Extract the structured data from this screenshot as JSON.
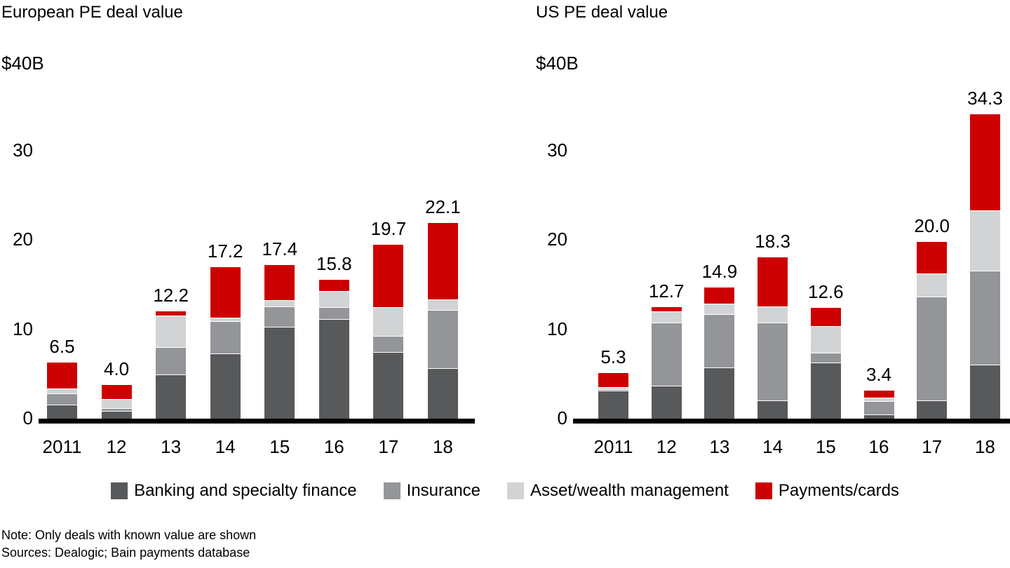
{
  "page": {
    "background": "#ffffff",
    "text_color": "#000000"
  },
  "palette": {
    "banking": "#58595B",
    "insurance": "#939598",
    "asset_wealth": "#D1D3D4",
    "payments": "#CC0000",
    "axis": "#000000"
  },
  "chart_data": [
    {
      "type": "bar",
      "stacked": true,
      "title": "European PE deal value",
      "unit_label": "$40B",
      "categories": [
        "2011",
        "12",
        "13",
        "14",
        "15",
        "16",
        "17",
        "18"
      ],
      "series": [
        {
          "name": "Banking and specialty finance",
          "color": "#58595B",
          "values": [
            1.8,
            1.1,
            5.2,
            7.5,
            10.5,
            11.4,
            7.7,
            5.9
          ]
        },
        {
          "name": "Insurance",
          "color": "#939598",
          "values": [
            1.3,
            0.3,
            3.0,
            3.6,
            2.3,
            1.3,
            1.8,
            6.5
          ]
        },
        {
          "name": "Asset/wealth management",
          "color": "#D1D3D4",
          "values": [
            0.5,
            1.0,
            3.6,
            0.4,
            0.7,
            1.8,
            3.2,
            1.2
          ]
        },
        {
          "name": "Payments/cards",
          "color": "#CC0000",
          "values": [
            2.9,
            1.6,
            0.4,
            5.7,
            3.9,
            1.3,
            7.0,
            8.5
          ]
        }
      ],
      "bar_total_labels": [
        "6.5",
        "4.0",
        "12.2",
        "17.2",
        "17.4",
        "15.8",
        "19.7",
        "22.1"
      ],
      "ylim": [
        0,
        40
      ],
      "yticks": [
        0,
        10,
        20,
        30
      ],
      "grid": false,
      "legend_position": "bottom-shared"
    },
    {
      "type": "bar",
      "stacked": true,
      "title": "US PE deal value",
      "unit_label": "$40B",
      "categories": [
        "2011",
        "12",
        "13",
        "14",
        "15",
        "16",
        "17",
        "18"
      ],
      "series": [
        {
          "name": "Banking and specialty finance",
          "color": "#58595B",
          "values": [
            3.4,
            3.9,
            6.0,
            2.3,
            6.5,
            0.7,
            2.3,
            6.3
          ]
        },
        {
          "name": "Insurance",
          "color": "#939598",
          "values": [
            0.1,
            7.1,
            5.9,
            8.7,
            1.1,
            1.5,
            11.6,
            10.5
          ]
        },
        {
          "name": "Asset/wealth management",
          "color": "#D1D3D4",
          "values": [
            0.3,
            1.2,
            1.2,
            1.8,
            3.0,
            0.4,
            2.6,
            6.7
          ]
        },
        {
          "name": "Payments/cards",
          "color": "#CC0000",
          "values": [
            1.5,
            0.5,
            1.8,
            5.5,
            2.0,
            0.8,
            3.5,
            10.8
          ]
        }
      ],
      "bar_total_labels": [
        "5.3",
        "12.7",
        "14.9",
        "18.3",
        "12.6",
        "3.4",
        "20.0",
        "34.3"
      ],
      "ylim": [
        0,
        40
      ],
      "yticks": [
        0,
        10,
        20,
        30
      ],
      "grid": false,
      "legend_position": "bottom-shared"
    }
  ],
  "legend": {
    "items": [
      {
        "label": "Banking and specialty finance",
        "color": "#58595B"
      },
      {
        "label": "Insurance",
        "color": "#939598"
      },
      {
        "label": "Asset/wealth management",
        "color": "#D1D3D4"
      },
      {
        "label": "Payments/cards",
        "color": "#CC0000"
      }
    ]
  },
  "notes": {
    "note": "Note: Only deals with known value are shown",
    "sources": "Sources: Dealogic; Bain payments database"
  }
}
